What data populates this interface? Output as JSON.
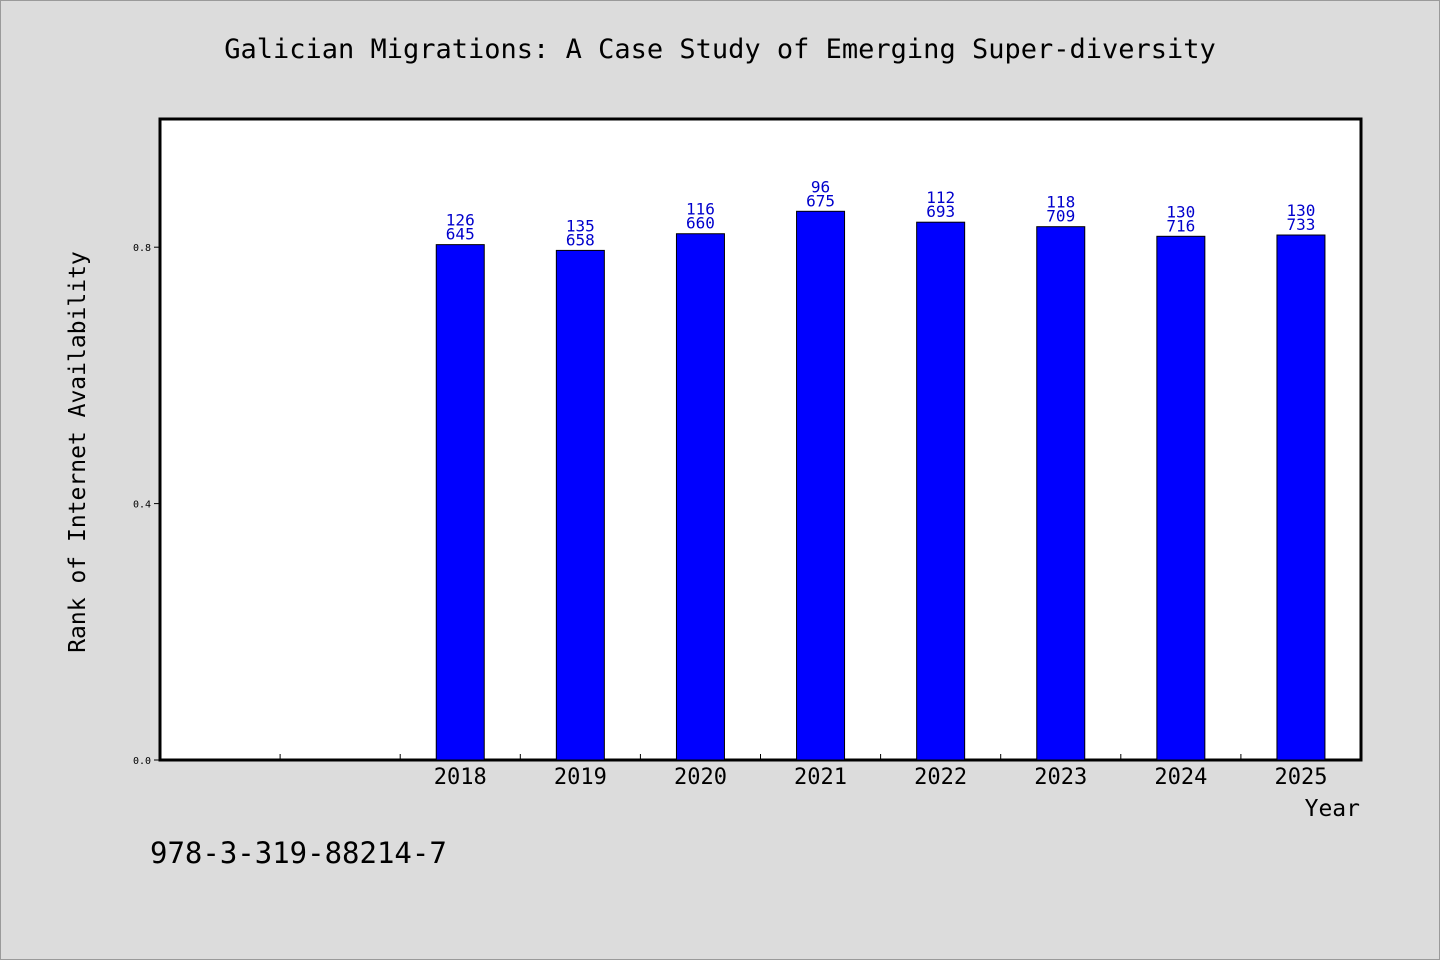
{
  "chart_data": {
    "type": "bar",
    "title": "Galician Migrations: A Case Study of Emerging Super-diversity",
    "xlabel": "Year",
    "ylabel": "Rank of Internet Availability",
    "categories": [
      "",
      "",
      "2018",
      "2019",
      "2020",
      "2021",
      "2022",
      "2023",
      "2024",
      "2025"
    ],
    "values": [
      null,
      null,
      0.804,
      0.795,
      0.821,
      0.856,
      0.839,
      0.832,
      0.817,
      0.819
    ],
    "label_top": [
      "",
      "",
      "126",
      "135",
      "116",
      "96",
      "112",
      "118",
      "130",
      "130"
    ],
    "label_bottom": [
      "",
      "",
      "645",
      "658",
      "660",
      "675",
      "693",
      "709",
      "716",
      "733"
    ],
    "ylim": [
      0,
      1.0
    ],
    "yticks": [
      0.0,
      0.4,
      0.8
    ],
    "ytick_labels": [
      "0.0",
      "0.4",
      "0.8"
    ],
    "grid": false,
    "legend": "none",
    "bar_color": "#0000ff",
    "label_color": "#0000cc"
  },
  "footer": {
    "isbn": "978-3-319-88214-7"
  }
}
